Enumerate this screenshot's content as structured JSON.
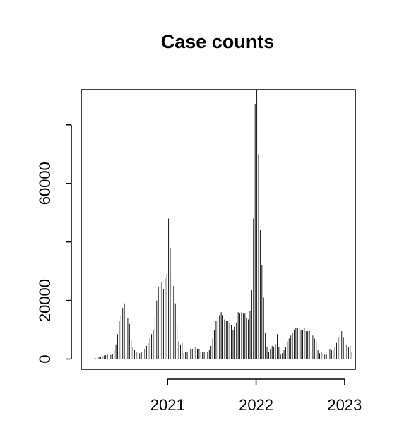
{
  "chart_data": {
    "type": "bar",
    "title": "Case counts",
    "xlabel": "",
    "ylabel": "",
    "grid": false,
    "legend": "none",
    "bar_color": "#000000",
    "x_ticks": [
      {
        "date": "2021-01-01",
        "label": "2021"
      },
      {
        "date": "2022-01-01",
        "label": "2022"
      },
      {
        "date": "2023-01-01",
        "label": "2023"
      }
    ],
    "y_ticks": [
      {
        "value": 0,
        "label": "0"
      },
      {
        "value": 20000,
        "label": "20000"
      },
      {
        "value": 60000,
        "label": "60000"
      }
    ],
    "y_unlabeled_ticks": [
      40000,
      80000
    ],
    "xlim": [
      "2020-01-11",
      "2023-02-14"
    ],
    "ylim": [
      -3500,
      92000
    ],
    "series": [
      {
        "x": [
          "2020-02-25",
          "2020-03-03",
          "2020-03-10",
          "2020-03-17",
          "2020-03-24",
          "2020-03-31",
          "2020-04-07",
          "2020-04-14",
          "2020-04-21",
          "2020-04-28",
          "2020-05-05",
          "2020-05-12",
          "2020-05-19",
          "2020-05-26",
          "2020-06-02",
          "2020-06-09",
          "2020-06-16",
          "2020-06-23",
          "2020-06-30",
          "2020-07-07",
          "2020-07-14",
          "2020-07-21",
          "2020-07-28",
          "2020-08-04",
          "2020-08-11",
          "2020-08-18",
          "2020-08-25",
          "2020-09-01",
          "2020-09-08",
          "2020-09-15",
          "2020-09-22",
          "2020-09-29",
          "2020-10-06",
          "2020-10-13",
          "2020-10-20",
          "2020-10-27",
          "2020-11-03",
          "2020-11-10",
          "2020-11-17",
          "2020-11-24",
          "2020-12-01",
          "2020-12-08",
          "2020-12-15",
          "2020-12-22",
          "2020-12-29",
          "2021-01-05",
          "2021-01-12",
          "2021-01-19",
          "2021-01-26",
          "2021-02-02",
          "2021-02-09",
          "2021-02-16",
          "2021-02-23",
          "2021-03-02",
          "2021-03-09",
          "2021-03-16",
          "2021-03-23",
          "2021-03-30",
          "2021-04-06",
          "2021-04-13",
          "2021-04-20",
          "2021-04-27",
          "2021-05-04",
          "2021-05-11",
          "2021-05-18",
          "2021-05-25",
          "2021-06-01",
          "2021-06-08",
          "2021-06-15",
          "2021-06-22",
          "2021-06-29",
          "2021-07-06",
          "2021-07-13",
          "2021-07-20",
          "2021-07-27",
          "2021-08-03",
          "2021-08-10",
          "2021-08-17",
          "2021-08-24",
          "2021-08-31",
          "2021-09-07",
          "2021-09-14",
          "2021-09-21",
          "2021-09-28",
          "2021-10-05",
          "2021-10-12",
          "2021-10-19",
          "2021-10-26",
          "2021-11-02",
          "2021-11-09",
          "2021-11-16",
          "2021-11-23",
          "2021-11-30",
          "2021-12-07",
          "2021-12-14",
          "2021-12-21",
          "2021-12-28",
          "2022-01-04",
          "2022-01-11",
          "2022-01-18",
          "2022-01-25",
          "2022-02-01",
          "2022-02-08",
          "2022-02-15",
          "2022-02-22",
          "2022-03-01",
          "2022-03-08",
          "2022-03-15",
          "2022-03-22",
          "2022-03-29",
          "2022-04-05",
          "2022-04-12",
          "2022-04-19",
          "2022-04-26",
          "2022-05-03",
          "2022-05-10",
          "2022-05-17",
          "2022-05-24",
          "2022-05-31",
          "2022-06-07",
          "2022-06-14",
          "2022-06-21",
          "2022-06-28",
          "2022-07-05",
          "2022-07-12",
          "2022-07-19",
          "2022-07-26",
          "2022-08-02",
          "2022-08-09",
          "2022-08-16",
          "2022-08-23",
          "2022-08-30",
          "2022-09-06",
          "2022-09-13",
          "2022-09-20",
          "2022-09-27",
          "2022-10-04",
          "2022-10-11",
          "2022-10-18",
          "2022-10-25",
          "2022-11-01",
          "2022-11-08",
          "2022-11-15",
          "2022-11-22",
          "2022-11-29",
          "2022-12-06",
          "2022-12-13",
          "2022-12-20",
          "2022-12-27",
          "2023-01-03",
          "2023-01-10",
          "2023-01-17",
          "2023-01-24",
          "2023-01-31"
        ],
        "values": [
          100,
          150,
          250,
          400,
          600,
          800,
          1000,
          1200,
          1300,
          1500,
          1500,
          1400,
          1700,
          3000,
          5000,
          8500,
          13000,
          15000,
          17500,
          19000,
          16500,
          14000,
          12000,
          6500,
          4000,
          3000,
          2500,
          2500,
          2000,
          2500,
          3000,
          3500,
          4500,
          5500,
          7000,
          8500,
          10000,
          15000,
          20000,
          24500,
          25500,
          26500,
          24000,
          27500,
          29000,
          48000,
          38000,
          30000,
          25000,
          19000,
          12000,
          6000,
          5000,
          5500,
          2000,
          2500,
          2500,
          3000,
          3500,
          3500,
          4000,
          4000,
          3500,
          3500,
          2500,
          2500,
          2500,
          3000,
          2500,
          3000,
          4500,
          7000,
          10000,
          13000,
          14500,
          15000,
          16000,
          15000,
          13500,
          13000,
          13000,
          12500,
          11500,
          10000,
          11000,
          12500,
          16000,
          15500,
          16000,
          15500,
          15500,
          14000,
          13500,
          16500,
          23500,
          48000,
          87000,
          92000,
          70000,
          44000,
          32000,
          21000,
          9000,
          4000,
          2500,
          3500,
          4500,
          4000,
          5000,
          8500,
          4000,
          1500,
          2000,
          3000,
          4000,
          6000,
          7000,
          8000,
          9000,
          10000,
          10500,
          10500,
          10500,
          10000,
          10000,
          10500,
          9500,
          9500,
          9500,
          9000,
          8000,
          7000,
          6000,
          3000,
          2000,
          2500,
          2000,
          1500,
          1500,
          2000,
          3500,
          3000,
          3000,
          4000,
          5500,
          7500,
          8000,
          9500,
          7500,
          6500,
          5000,
          4000,
          4500,
          2500
        ]
      }
    ]
  }
}
